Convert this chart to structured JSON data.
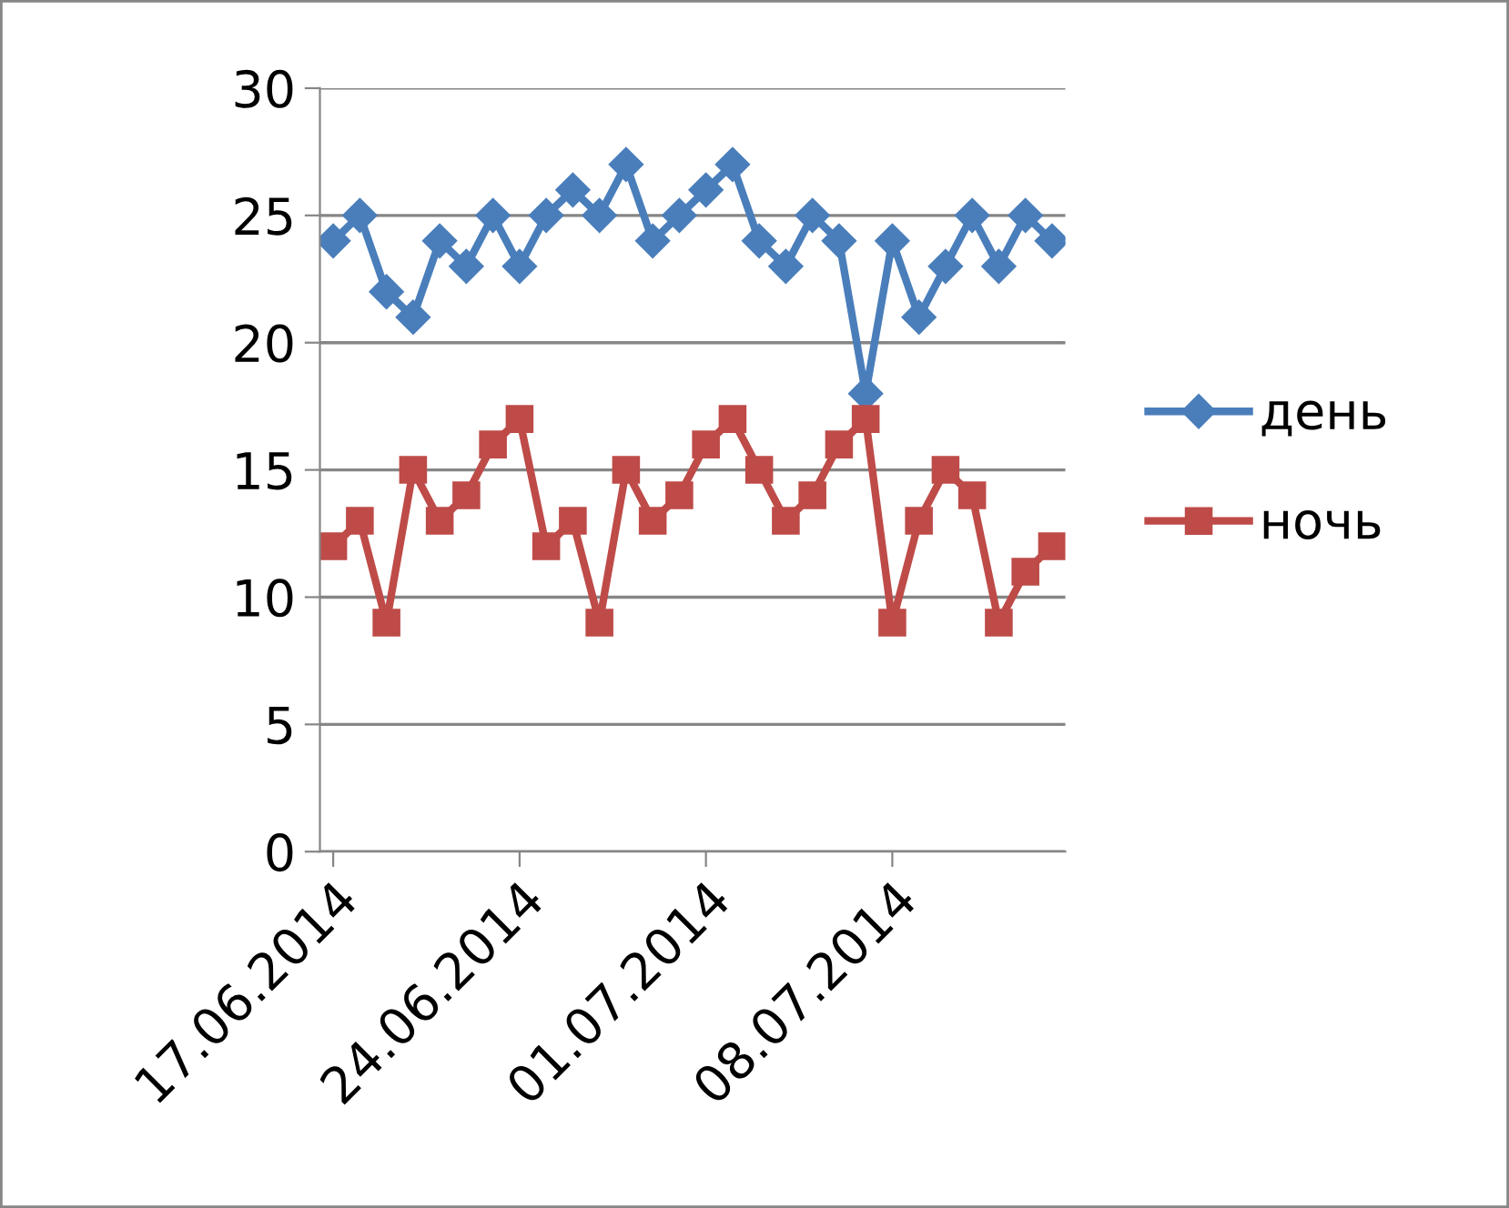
{
  "chart_data": {
    "type": "line",
    "x": [
      "2014-06-17",
      "2014-06-18",
      "2014-06-19",
      "2014-06-20",
      "2014-06-21",
      "2014-06-22",
      "2014-06-23",
      "2014-06-24",
      "2014-06-25",
      "2014-06-26",
      "2014-06-27",
      "2014-06-28",
      "2014-06-29",
      "2014-06-30",
      "2014-07-01",
      "2014-07-02",
      "2014-07-03",
      "2014-07-04",
      "2014-07-05",
      "2014-07-06",
      "2014-07-07",
      "2014-07-08",
      "2014-07-09",
      "2014-07-10",
      "2014-07-11",
      "2014-07-12",
      "2014-07-13",
      "2014-07-14"
    ],
    "series": [
      {
        "name": "день",
        "color": "#4a7ebb",
        "marker": "diamond",
        "values": [
          24,
          25,
          22,
          21,
          24,
          23,
          25,
          23,
          25,
          26,
          25,
          27,
          24,
          25,
          26,
          27,
          24,
          23,
          25,
          24,
          18,
          24,
          21,
          23,
          25,
          23,
          25,
          24
        ]
      },
      {
        "name": "ночь",
        "color": "#be4b48",
        "marker": "square",
        "values": [
          12,
          13,
          9,
          15,
          13,
          14,
          16,
          17,
          12,
          13,
          9,
          15,
          13,
          14,
          16,
          17,
          15,
          13,
          14,
          16,
          17,
          9,
          13,
          15,
          14,
          9,
          11,
          12
        ]
      }
    ],
    "xlim": [
      "2014-06-16T12:00",
      "2014-07-14T12:00"
    ],
    "xticks": [
      {
        "value": "2014-06-17",
        "label": "17.06.2014"
      },
      {
        "value": "2014-06-24",
        "label": "24.06.2014"
      },
      {
        "value": "2014-07-01",
        "label": "01.07.2014"
      },
      {
        "value": "2014-07-08",
        "label": "08.07.2014"
      }
    ],
    "ylim": [
      0,
      30
    ],
    "yticks": [
      0,
      5,
      10,
      15,
      20,
      25,
      30
    ],
    "grid": "y",
    "legend": "right",
    "line_style": "solid"
  }
}
